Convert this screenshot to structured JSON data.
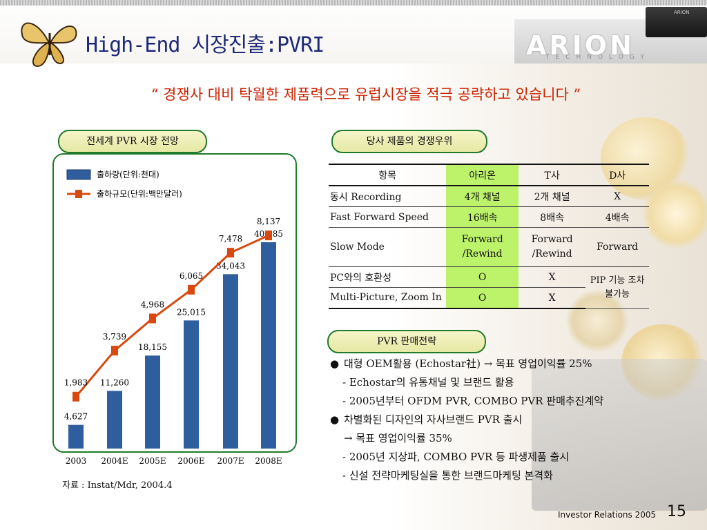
{
  "header": {
    "title": "High-End 시장진출:PVRI"
  },
  "logo": {
    "name": "ARION",
    "subtitle": "TECHNOLOGY"
  },
  "quote": "“ 경쟁사 대비 탁월한 제품력으로 유럽시장을 적극 공략하고 있습니다 ”",
  "left_section": {
    "pill": "전세계 PVR 시장 전망",
    "legend": {
      "bar": "출하량(단위:천대)",
      "line": "출하규모(단위:백만달러)"
    },
    "source": "자료 : Instat/Mdr, 2004.4"
  },
  "chart_data": {
    "type": "bar",
    "categories": [
      "2003",
      "2004E",
      "2005E",
      "2006E",
      "2007E",
      "2008E"
    ],
    "series": [
      {
        "name": "출하량(단위:천대)",
        "type": "bar",
        "values": [
          4627,
          11260,
          18155,
          25015,
          34043,
          40285
        ],
        "labels": [
          "4,627",
          "11,260",
          "18,155",
          "25,015",
          "34,043",
          "40,285"
        ]
      },
      {
        "name": "출하규모(단위:백만달러)",
        "type": "line",
        "values": [
          1983,
          3739,
          4968,
          6065,
          7478,
          8137
        ],
        "labels": [
          "1,983",
          "3,739",
          "4,968",
          "6,065",
          "7,478",
          "8,137"
        ]
      }
    ],
    "colors": {
      "bar": "#2e5e9e",
      "line": "#d9480f"
    },
    "ylim_bar": [
      0,
      45000
    ],
    "ylim_line": [
      0,
      8800
    ],
    "grid": false,
    "legend_position": "top-left"
  },
  "comparison": {
    "pill": "당사 제품의 경쟁우위",
    "headers": [
      "항목",
      "아리온",
      "T사",
      "D사"
    ],
    "rows": [
      {
        "label": "동시 Recording",
        "arion": "4개 채널",
        "t": "2개 채널",
        "d": "X"
      },
      {
        "label": "Fast Forward Speed",
        "arion": "16배속",
        "t": "8배속",
        "d": "4배속"
      },
      {
        "label": "Slow Mode",
        "arion": "Forward /Rewind",
        "t": "Forward /Rewind",
        "d": "Forward"
      },
      {
        "label": "PC와의 호환성",
        "arion": "O",
        "t": "X",
        "d": "PIP 기능 조차 불가능"
      },
      {
        "label": "Multi-Picture, Zoom In",
        "arion": "O",
        "t": "X"
      }
    ],
    "highlight_color": "#bdf26b"
  },
  "strategy": {
    "pill": "PVR 판매전략",
    "items": [
      {
        "bullet": "●",
        "text": "대형 OEM활용 (Echostar社) → 목표 영업이익률 25%"
      },
      {
        "text": "- Echostar의 유통채널 및 브랜드 활용"
      },
      {
        "text": "- 2005년부터 OFDM PVR, COMBO PVR 판매추진계약"
      },
      {
        "bullet": "●",
        "text": "차별화된 디자인의 자사브랜드 PVR 출시"
      },
      {
        "text": "→ 목표 영업이익률 35%"
      },
      {
        "text": "- 2005년 지상파, COMBO PVR 등 파생제품 출시"
      },
      {
        "text": "- 신설 전략마케팅실을 통한 브랜드마케팅 본격화"
      }
    ]
  },
  "footer": {
    "text": "Investor Relations 2005",
    "page": "15"
  }
}
